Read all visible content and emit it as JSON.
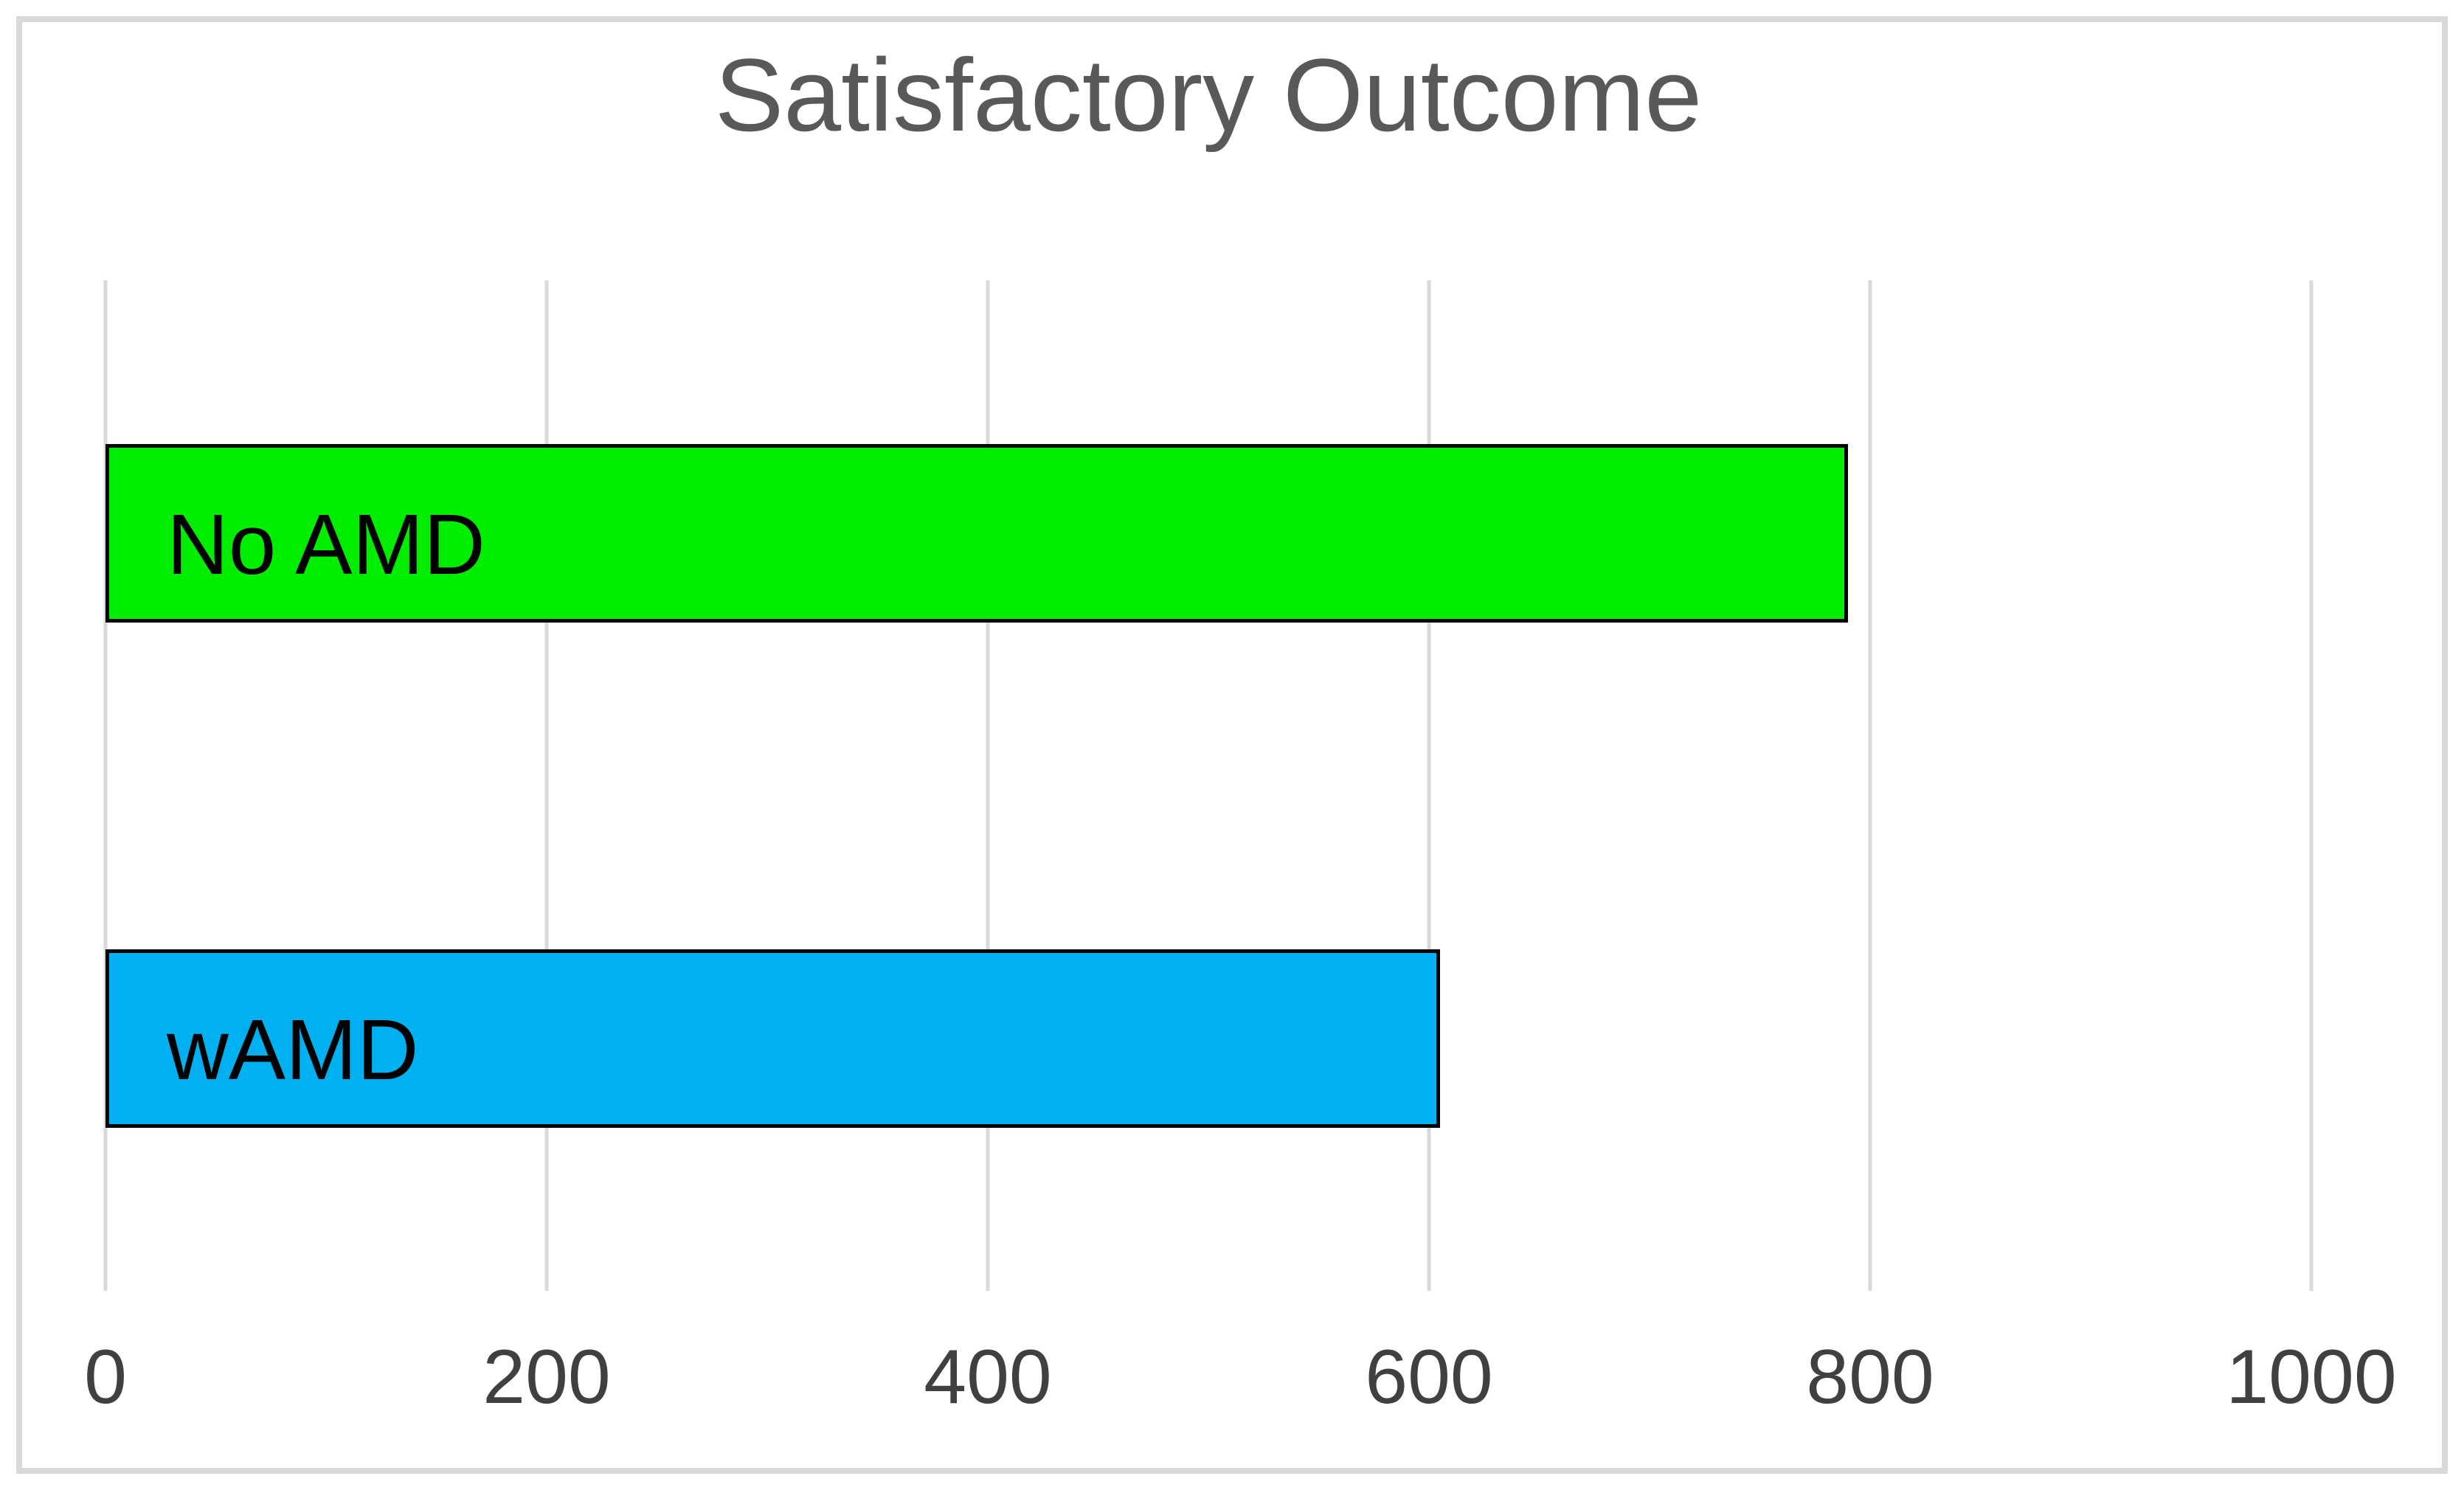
{
  "chart_data": {
    "type": "bar",
    "orientation": "horizontal",
    "title": "Satisfactory Outcome",
    "categories": [
      "No AMD",
      "wAMD"
    ],
    "values": [
      790,
      605
    ],
    "bar_colors": [
      "#00ED00",
      "#00B0F0"
    ],
    "xlim": [
      0,
      1000
    ],
    "x_ticks": [
      0,
      200,
      400,
      600,
      800,
      1000
    ],
    "xlabel": "",
    "ylabel": "",
    "grid": "vertical",
    "legend": "none",
    "category_label_position": "inside-bar-left"
  },
  "colors": {
    "background": "#FFFFFF",
    "frame_border": "#D9D9D9",
    "gridline": "#D9D9D9",
    "title_text": "#595959",
    "tick_text": "#404040",
    "bar_border": "#000000"
  }
}
